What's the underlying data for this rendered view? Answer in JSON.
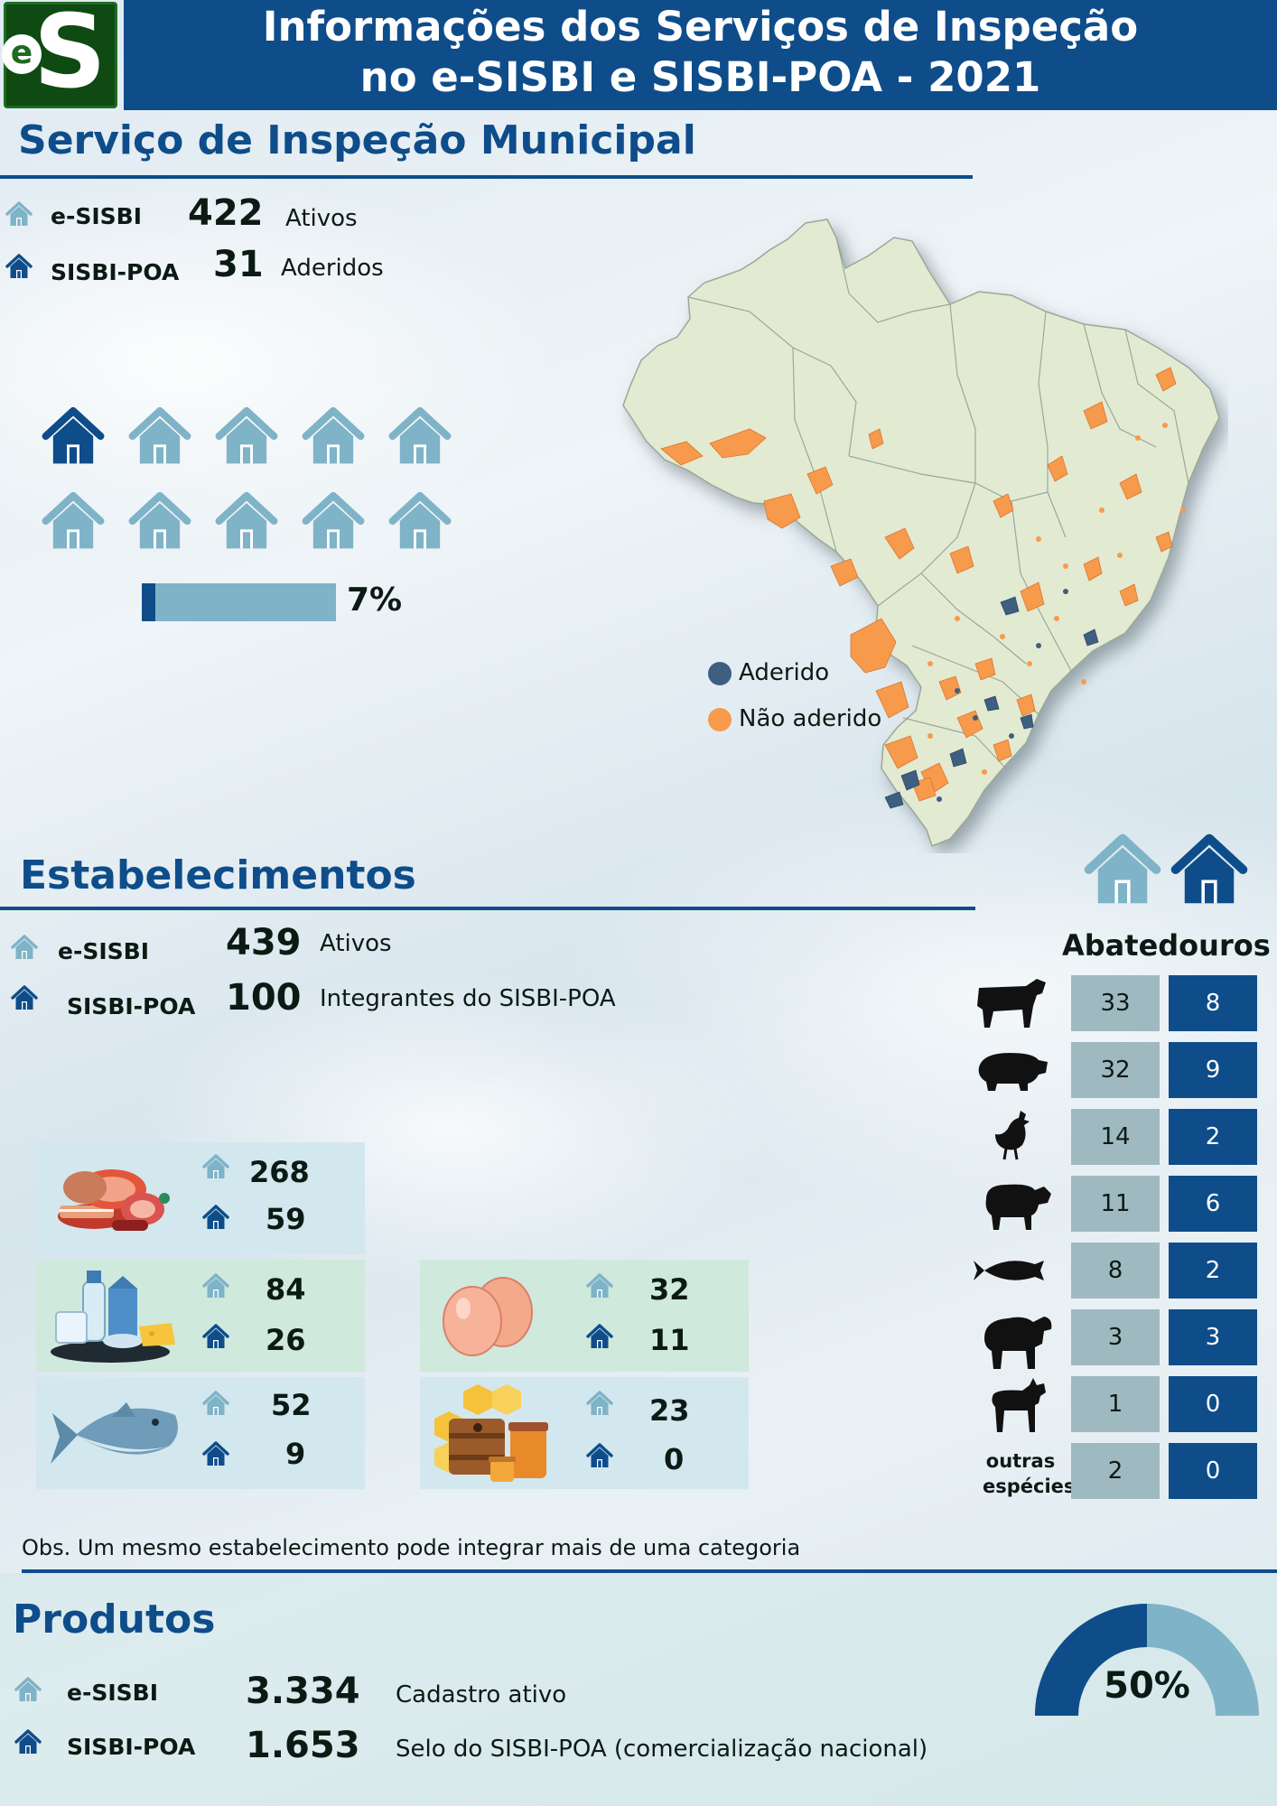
{
  "header": {
    "title_line1": "Informações dos Serviços de Inspeção",
    "title_line2": "no e-SISBI e SISBI-POA - 2021",
    "logo_e": "e",
    "logo_s": "S"
  },
  "colors": {
    "dark_blue": "#0e4d8a",
    "light_blue": "#7fb3c7",
    "orange": "#f79a4c",
    "map_green": "#e6ecd6"
  },
  "sim": {
    "title": "Serviço de Inspeção Municipal",
    "esisbi": {
      "label": "e-SISBI",
      "value": "422",
      "desc": "Ativos"
    },
    "sisbipoa": {
      "label": "SISBI-POA",
      "value": "31",
      "desc": "Aderidos"
    },
    "percent_label": "7%",
    "percent_value": 0.07,
    "houses_total": 10,
    "houses_highlighted": 1
  },
  "map_legend": {
    "aderido": "Aderido",
    "nao_aderido": "Não aderido"
  },
  "estabelecimentos": {
    "title": "Estabelecimentos",
    "esisbi": {
      "label": "e-SISBI",
      "value": "439",
      "desc": "Ativos"
    },
    "sisbipoa": {
      "label": "SISBI-POA",
      "value": "100",
      "desc": "Integrantes do SISBI-POA"
    },
    "categories": [
      {
        "icon": "meat-icon",
        "esisbi": "268",
        "sisbipoa": "59"
      },
      {
        "icon": "dairy-icon",
        "esisbi": "84",
        "sisbipoa": "26"
      },
      {
        "icon": "fish-icon",
        "esisbi": "52",
        "sisbipoa": "9"
      },
      {
        "icon": "eggs-icon",
        "esisbi": "32",
        "sisbipoa": "11"
      },
      {
        "icon": "honey-icon",
        "esisbi": "23",
        "sisbipoa": "0"
      }
    ],
    "note": "Obs. Um mesmo estabelecimento pode integrar mais de uma categoria"
  },
  "abatedouros": {
    "title": "Abatedouros",
    "rows": [
      {
        "icon": "cow-icon",
        "esisbi": "33",
        "sisbipoa": "8"
      },
      {
        "icon": "pig-icon",
        "esisbi": "32",
        "sisbipoa": "9"
      },
      {
        "icon": "chicken-icon",
        "esisbi": "14",
        "sisbipoa": "2"
      },
      {
        "icon": "sheep-icon",
        "esisbi": "11",
        "sisbipoa": "6"
      },
      {
        "icon": "fish-icon",
        "esisbi": "8",
        "sisbipoa": "2"
      },
      {
        "icon": "buffalo-icon",
        "esisbi": "3",
        "sisbipoa": "3"
      },
      {
        "icon": "goat-icon",
        "esisbi": "1",
        "sisbipoa": "0"
      },
      {
        "icon": "other-species",
        "label_line1": "outras",
        "label_line2": "espécies",
        "esisbi": "2",
        "sisbipoa": "0"
      }
    ]
  },
  "produtos": {
    "title": "Produtos",
    "esisbi": {
      "label": "e-SISBI",
      "value": "3.334",
      "desc": "Cadastro ativo"
    },
    "sisbipoa": {
      "label": "SISBI-POA",
      "value": "1.653",
      "desc": "Selo do SISBI-POA (comercialização nacional)"
    },
    "percent_label": "50%",
    "percent_value": 0.5
  }
}
